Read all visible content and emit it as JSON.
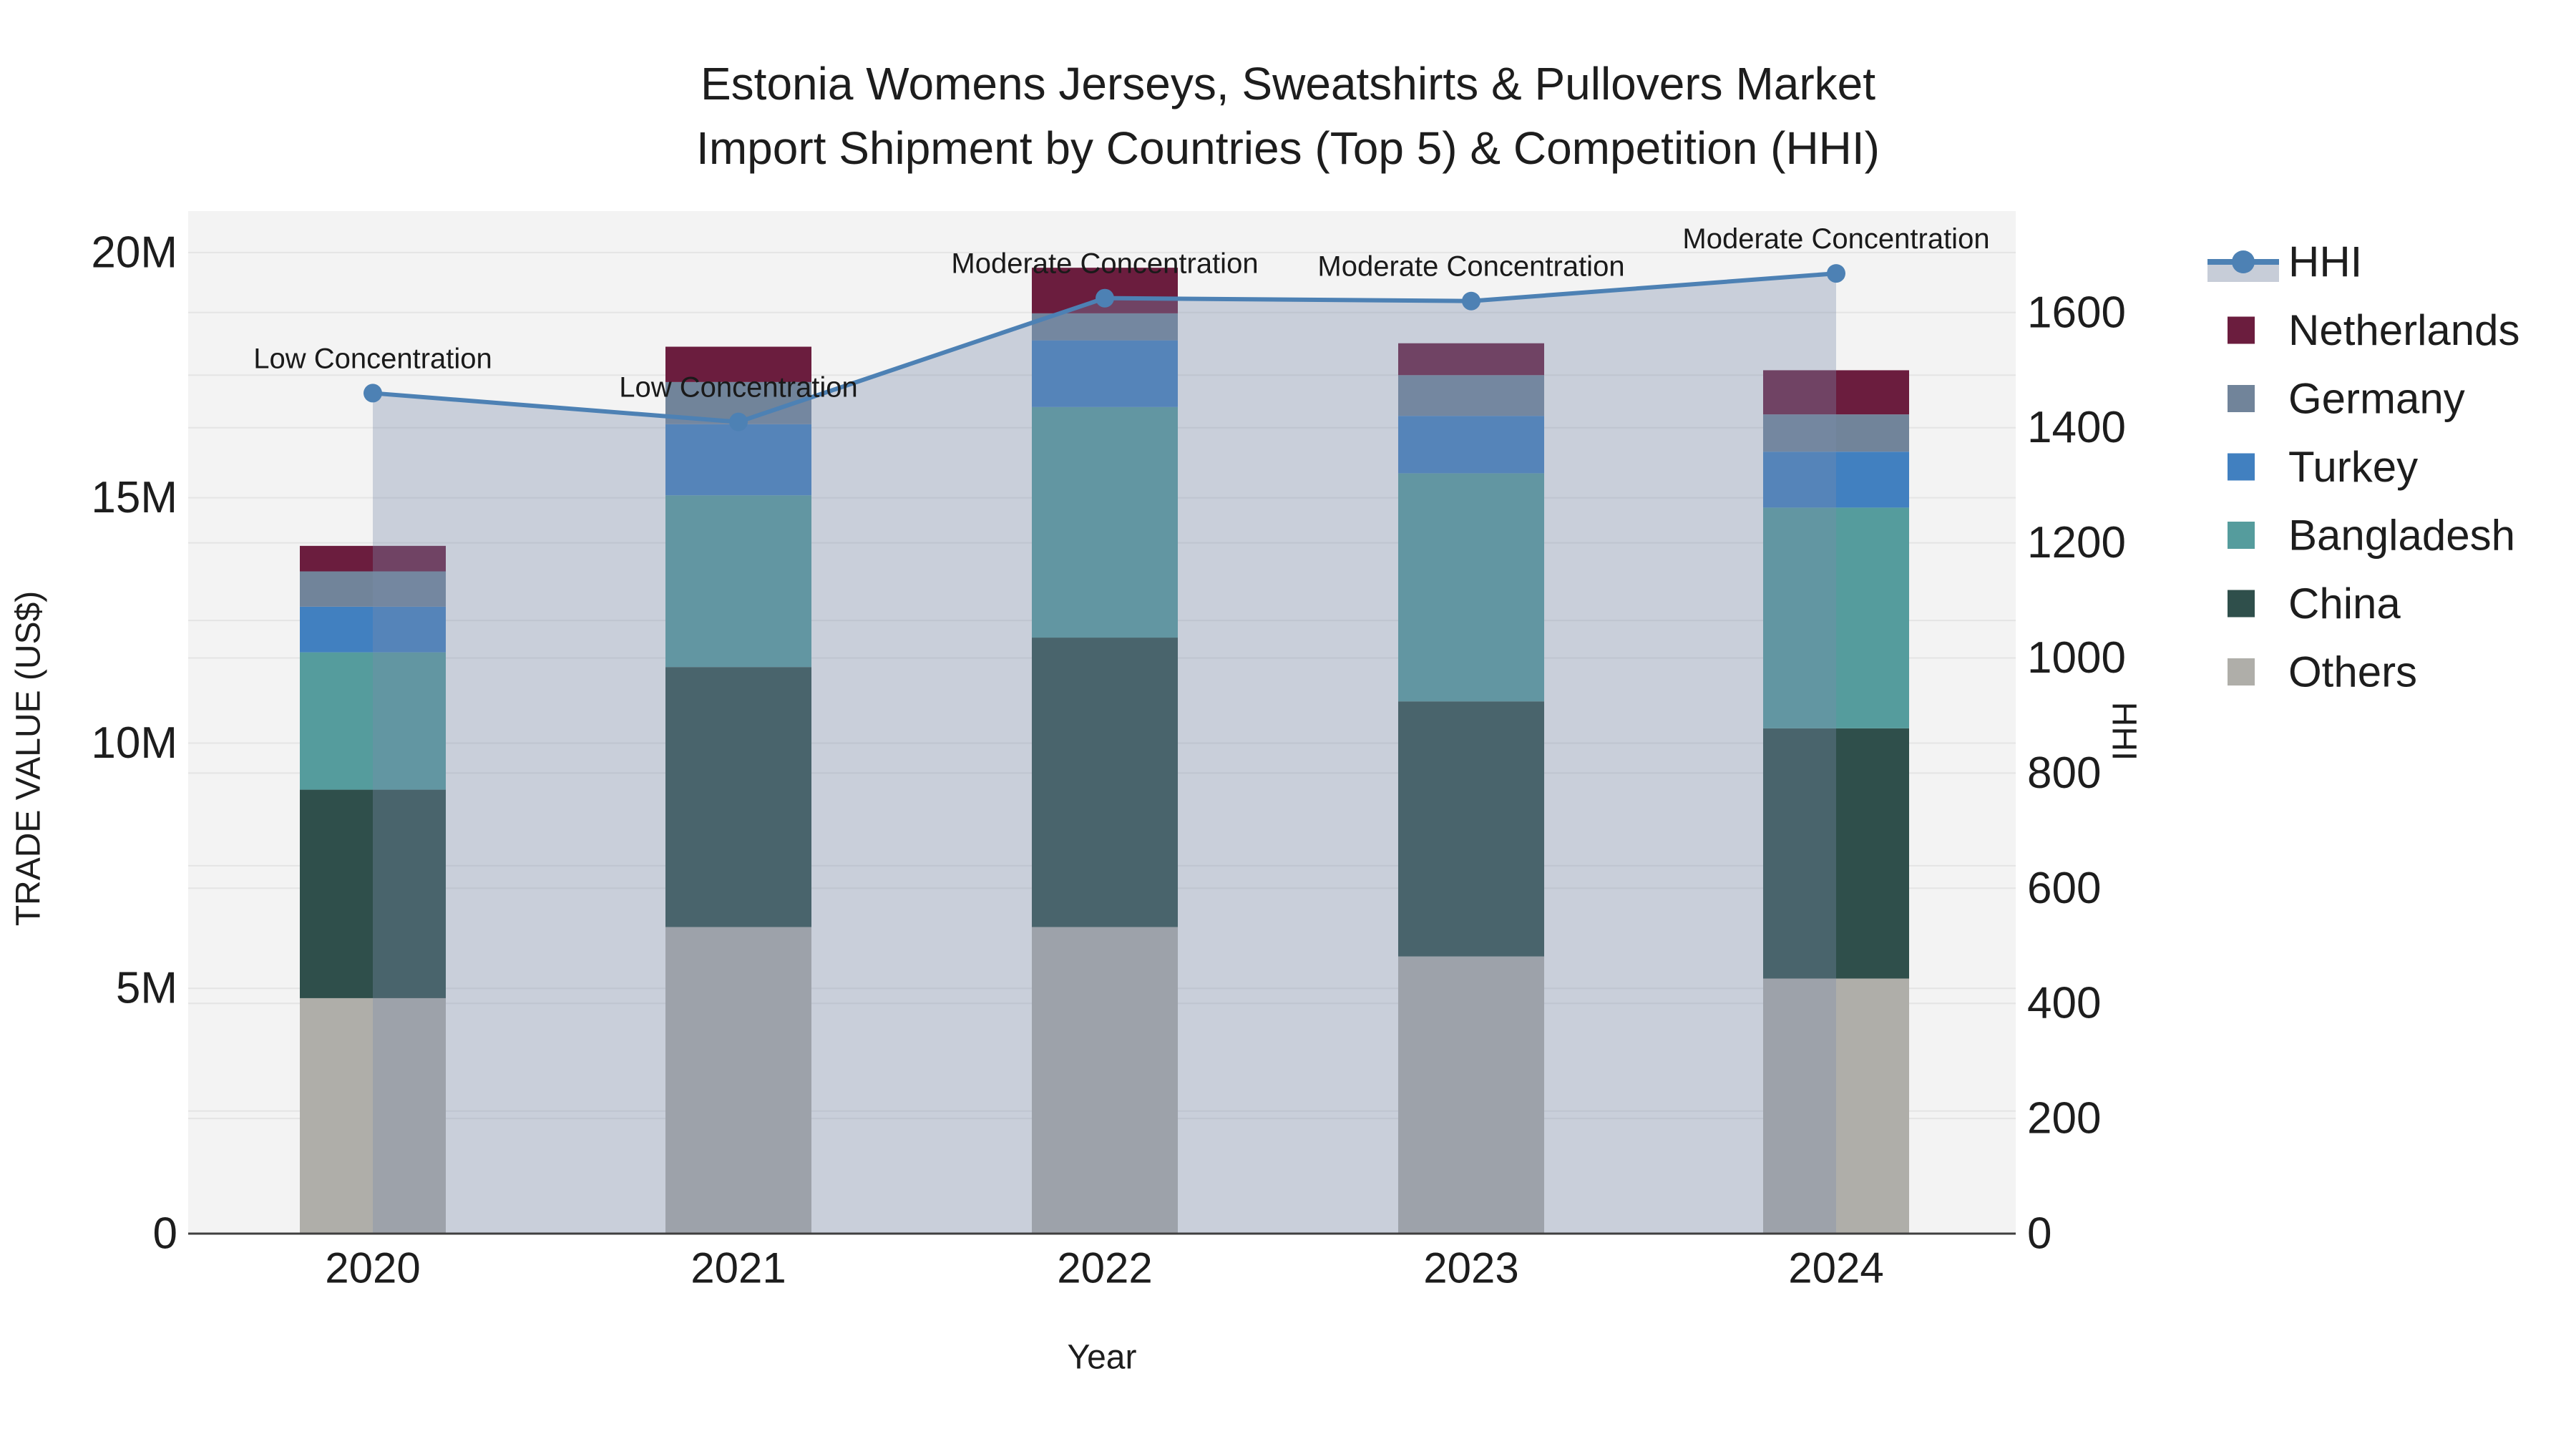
{
  "title": {
    "line1": "Estonia Womens Jerseys, Sweatshirts & Pullovers Market",
    "line2": "Import Shipment by Countries (Top 5) & Competition (HHI)"
  },
  "axes": {
    "x": {
      "title": "Year",
      "tick_labels": [
        "2020",
        "2021",
        "2022",
        "2023",
        "2024"
      ]
    },
    "y_left": {
      "title": "TRADE VALUE (US$)",
      "tick_labels": [
        "0",
        "5M",
        "10M",
        "15M",
        "20M"
      ],
      "tick_values_m": [
        0,
        5,
        10,
        15,
        20
      ]
    },
    "y_right": {
      "title": "HHI",
      "tick_labels": [
        "0",
        "200",
        "400",
        "600",
        "800",
        "1000",
        "1200",
        "1400",
        "1600"
      ],
      "tick_values": [
        0,
        200,
        400,
        600,
        800,
        1000,
        1200,
        1400,
        1600
      ]
    }
  },
  "legend": {
    "items": [
      {
        "label": "HHI",
        "type": "line",
        "color": "#4D81B4",
        "fill": "#C7CDD8"
      },
      {
        "label": "Netherlands",
        "type": "swatch",
        "color": "#6B1D3E"
      },
      {
        "label": "Germany",
        "type": "swatch",
        "color": "#71849A"
      },
      {
        "label": "Turkey",
        "type": "swatch",
        "color": "#4180C0"
      },
      {
        "label": "Bangladesh",
        "type": "swatch",
        "color": "#559C9D"
      },
      {
        "label": "China",
        "type": "swatch",
        "color": "#2F4F4B"
      },
      {
        "label": "Others",
        "type": "swatch",
        "color": "#AFAEA9"
      }
    ]
  },
  "chart_data": {
    "type": "bar",
    "subtype": "stacked-bars-with-line-overlay",
    "categories": [
      "2020",
      "2021",
      "2022",
      "2023",
      "2024"
    ],
    "value_unit": "millions USD",
    "series": [
      {
        "name": "Others",
        "color": "#AFAEA9",
        "values": [
          4.8,
          6.25,
          6.25,
          5.65,
          5.2
        ]
      },
      {
        "name": "China",
        "color": "#2F4F4B",
        "values": [
          4.25,
          5.3,
          5.9,
          5.2,
          5.1
        ]
      },
      {
        "name": "Bangladesh",
        "color": "#559C9D",
        "values": [
          2.8,
          3.5,
          4.7,
          4.65,
          4.5
        ]
      },
      {
        "name": "Turkey",
        "color": "#4180C0",
        "values": [
          0.93,
          1.45,
          1.36,
          1.17,
          1.14
        ]
      },
      {
        "name": "Germany",
        "color": "#71849A",
        "values": [
          0.72,
          0.86,
          0.55,
          0.83,
          0.76
        ]
      },
      {
        "name": "Netherlands",
        "color": "#6B1D3E",
        "values": [
          0.52,
          0.72,
          0.93,
          0.65,
          0.9
        ]
      }
    ],
    "line_series": {
      "name": "HHI",
      "axis": "right",
      "values": [
        1460,
        1410,
        1625,
        1620,
        1668
      ],
      "color": "#4D81B4",
      "area_fill": "rgba(123,140,171,0.35)"
    },
    "annotations": [
      {
        "category": "2020",
        "text": "Low Concentration"
      },
      {
        "category": "2021",
        "text": "Low Concentration"
      },
      {
        "category": "2022",
        "text": "Moderate Concentration"
      },
      {
        "category": "2023",
        "text": "Moderate Concentration"
      },
      {
        "category": "2024",
        "text": "Moderate Concentration"
      }
    ],
    "title": "Estonia Womens Jerseys, Sweatshirts & Pullovers Market Import Shipment by Countries (Top 5) & Competition (HHI)",
    "xlabel": "Year",
    "ylabel_left": "TRADE VALUE (US$)",
    "ylabel_right": "HHI",
    "ylim_left_m": [
      0,
      20.8
    ],
    "ylim_right": [
      0,
      1772
    ],
    "grid": true,
    "legend_position": "right"
  },
  "colors": {
    "plot_background": "#F3F3F3",
    "gridline": "#E4E4E4",
    "axis_line": "#3F3F3F",
    "text": "#1D1D1D"
  }
}
